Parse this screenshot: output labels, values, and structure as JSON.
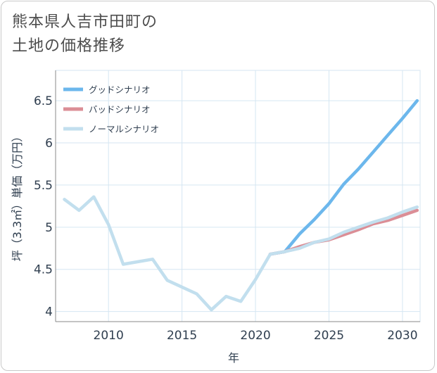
{
  "title": {
    "line1": "熊本県人吉市田町の",
    "line2": "土地の価格推移"
  },
  "colors": {
    "good": "#6cb7ec",
    "bad": "#db8e96",
    "normal": "#c2dfee",
    "grid": "#d5e6f2",
    "axis": "#2f3e4f"
  },
  "chart_data": {
    "type": "line",
    "title": "熊本県人吉市田町の土地の価格推移",
    "xlabel": "年",
    "ylabel": "坪（3.3㎡）単価（万円）",
    "xlim": [
      2006.4,
      2031.2
    ],
    "ylim": [
      3.88,
      6.86
    ],
    "xticks": [
      2010,
      2015,
      2020,
      2025,
      2030
    ],
    "yticks": [
      4,
      4.5,
      5,
      5.5,
      6,
      6.5
    ],
    "xtick_labels": [
      "2010",
      "2015",
      "2020",
      "2025",
      "2030"
    ],
    "ytick_labels": [
      "4",
      "4.5",
      "5",
      "5.5",
      "6",
      "6.5"
    ],
    "grid": true,
    "legend_position": "top-left",
    "series": [
      {
        "key": "good",
        "name": "グッドシナリオ",
        "x": [
          2021,
          2022,
          2023,
          2024,
          2025,
          2026,
          2027,
          2028,
          2029,
          2030,
          2031
        ],
        "values": [
          4.68,
          4.71,
          4.92,
          5.09,
          5.28,
          5.51,
          5.69,
          5.89,
          6.09,
          6.29,
          6.5
        ]
      },
      {
        "key": "bad",
        "name": "バッドシナリオ",
        "x": [
          2021,
          2022,
          2023,
          2024,
          2025,
          2026,
          2027,
          2028,
          2029,
          2030,
          2031
        ],
        "values": [
          4.68,
          4.71,
          4.77,
          4.82,
          4.85,
          4.91,
          4.97,
          5.04,
          5.08,
          5.14,
          5.2
        ]
      },
      {
        "key": "normal",
        "name": "ノーマルシナリオ",
        "x": [
          2007,
          2008,
          2009,
          2010,
          2011,
          2012,
          2013,
          2014,
          2015,
          2016,
          2017,
          2018,
          2019,
          2020,
          2021,
          2022,
          2023,
          2024,
          2025,
          2026,
          2027,
          2028,
          2029,
          2030,
          2031
        ],
        "values": [
          5.33,
          5.2,
          5.36,
          5.03,
          4.56,
          4.59,
          4.62,
          4.37,
          4.29,
          4.21,
          4.02,
          4.18,
          4.12,
          4.38,
          4.68,
          4.71,
          4.75,
          4.82,
          4.86,
          4.94,
          5.0,
          5.06,
          5.11,
          5.18,
          5.24
        ]
      }
    ]
  }
}
